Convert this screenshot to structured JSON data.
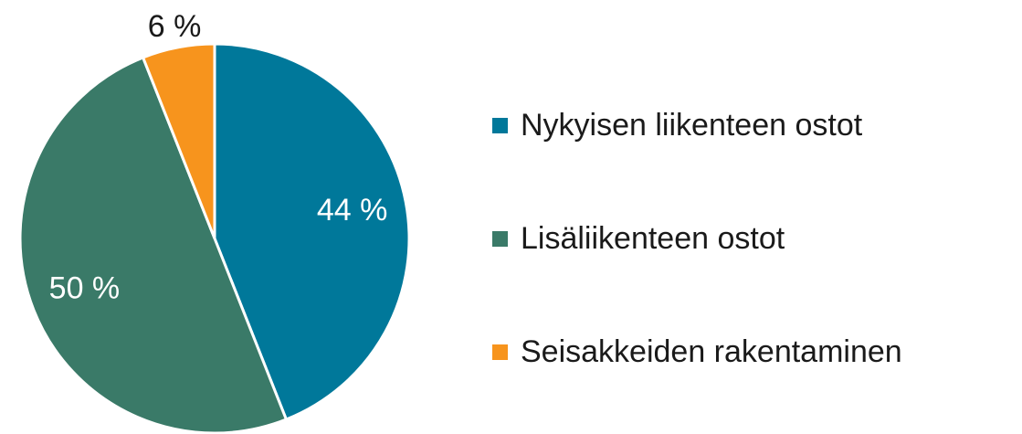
{
  "chart_data": {
    "type": "pie",
    "categories": [
      "Nykyisen liikenteen ostot",
      "Lisäliikenteen ostot",
      "Seisakkeiden rakentaminen"
    ],
    "values": [
      44,
      50,
      6
    ],
    "value_labels": [
      "44 %",
      "50 %",
      "6 %"
    ],
    "colors": [
      "#00789a",
      "#3a7a68",
      "#f7941d"
    ],
    "legend": "right"
  }
}
